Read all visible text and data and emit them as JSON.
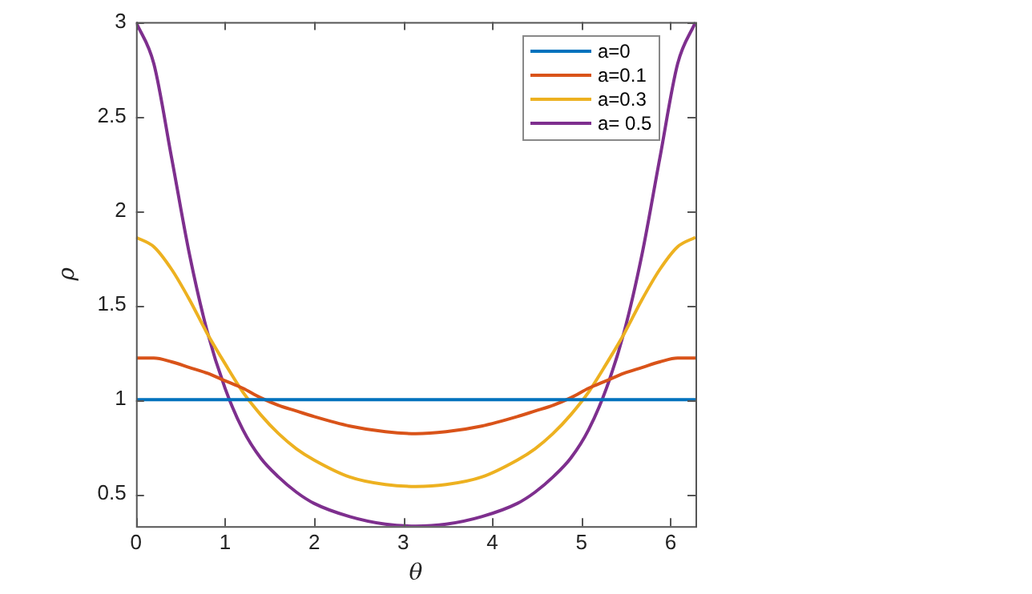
{
  "chart_data": {
    "type": "line",
    "xlabel": "θ",
    "ylabel": "ρ",
    "x": [
      0,
      0.2,
      0.4,
      0.6,
      0.8,
      1.0,
      1.2,
      1.4,
      1.6,
      1.8,
      2.0,
      2.4,
      2.8,
      3.14,
      3.48,
      3.88,
      4.28,
      4.48,
      4.68,
      4.88,
      5.08,
      5.28,
      5.48,
      5.68,
      5.88,
      6.08,
      6.28
    ],
    "series": [
      {
        "name": "a=0",
        "color": "#0072bd",
        "values": [
          1,
          1,
          1,
          1,
          1,
          1,
          1,
          1,
          1,
          1,
          1,
          1,
          1,
          1,
          1,
          1,
          1,
          1,
          1,
          1,
          1,
          1,
          1,
          1,
          1,
          1,
          1
        ]
      },
      {
        "name": "a=0.1",
        "color": "#d95319",
        "values": [
          1.22,
          1.22,
          1.2,
          1.17,
          1.14,
          1.1,
          1.06,
          1.01,
          0.97,
          0.94,
          0.91,
          0.86,
          0.83,
          0.82,
          0.83,
          0.86,
          0.91,
          0.94,
          0.97,
          1.01,
          1.06,
          1.1,
          1.14,
          1.17,
          1.2,
          1.22,
          1.22
        ]
      },
      {
        "name": "a=0.3",
        "color": "#edb120",
        "values": [
          1.86,
          1.81,
          1.69,
          1.53,
          1.35,
          1.19,
          1.04,
          0.92,
          0.82,
          0.74,
          0.68,
          0.59,
          0.55,
          0.54,
          0.55,
          0.59,
          0.68,
          0.74,
          0.82,
          0.92,
          1.04,
          1.19,
          1.35,
          1.53,
          1.69,
          1.81,
          1.86
        ]
      },
      {
        "name": "a= 0.5",
        "color": "#7e2f8e",
        "values": [
          3,
          2.78,
          2.28,
          1.77,
          1.36,
          1.06,
          0.84,
          0.69,
          0.59,
          0.51,
          0.45,
          0.38,
          0.34,
          0.33,
          0.34,
          0.38,
          0.45,
          0.51,
          0.59,
          0.69,
          0.84,
          1.06,
          1.36,
          1.77,
          2.28,
          2.78,
          3
        ]
      }
    ],
    "xlim": [
      0,
      6.28
    ],
    "xticks": [
      0,
      1,
      2,
      3,
      4,
      5,
      6
    ],
    "ylim": [
      0.33,
      3
    ],
    "yticks": [
      0.5,
      1,
      1.5,
      2,
      2.5,
      3
    ],
    "grid": false,
    "legend": "top right",
    "marker": "none",
    "line_style": "solid"
  }
}
